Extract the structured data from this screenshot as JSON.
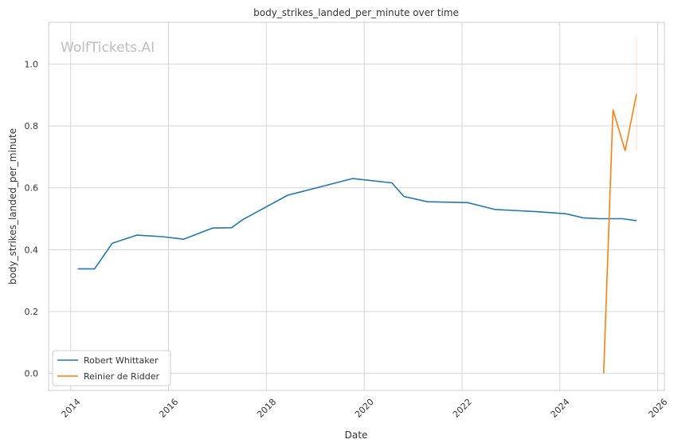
{
  "chart_data": {
    "type": "line",
    "title": "body_strikes_landed_per_minute over time",
    "xlabel": "Date",
    "ylabel": "body_strikes_landed_per_minute",
    "watermark": "WolfTickets.AI",
    "xlim": [
      "2013-07-20",
      "2026-02-20"
    ],
    "ylim": [
      -0.055,
      1.135
    ],
    "x_ticks": [
      "2014",
      "2016",
      "2018",
      "2020",
      "2022",
      "2024",
      "2026"
    ],
    "y_ticks": [
      "0.0",
      "0.2",
      "0.4",
      "0.6",
      "0.8",
      "1.0"
    ],
    "y_tick_values": [
      0.0,
      0.2,
      0.4,
      0.6,
      0.8,
      1.0
    ],
    "grid": true,
    "legend_position": "bottom-left",
    "series": [
      {
        "name": "Robert Whittaker",
        "color": "#1f77b4",
        "points": [
          {
            "x": "2014-02-22",
            "y": 0.338
          },
          {
            "x": "2014-06-28",
            "y": 0.338
          },
          {
            "x": "2014-11-08",
            "y": 0.421
          },
          {
            "x": "2015-05-10",
            "y": 0.447
          },
          {
            "x": "2015-11-14",
            "y": 0.442
          },
          {
            "x": "2016-04-23",
            "y": 0.434
          },
          {
            "x": "2016-11-26",
            "y": 0.47
          },
          {
            "x": "2017-04-16",
            "y": 0.471
          },
          {
            "x": "2017-07-08",
            "y": 0.497
          },
          {
            "x": "2018-06-09",
            "y": 0.576
          },
          {
            "x": "2019-10-06",
            "y": 0.63
          },
          {
            "x": "2020-07-26",
            "y": 0.616
          },
          {
            "x": "2020-10-24",
            "y": 0.572
          },
          {
            "x": "2021-04-17",
            "y": 0.555
          },
          {
            "x": "2022-02-12",
            "y": 0.552
          },
          {
            "x": "2022-09-03",
            "y": 0.53
          },
          {
            "x": "2023-07-08",
            "y": 0.523
          },
          {
            "x": "2024-02-17",
            "y": 0.516
          },
          {
            "x": "2024-06-22",
            "y": 0.503
          },
          {
            "x": "2024-10-26",
            "y": 0.5
          },
          {
            "x": "2025-04-12",
            "y": 0.5
          },
          {
            "x": "2025-07-26",
            "y": 0.494
          }
        ]
      },
      {
        "name": "Reinier de Ridder",
        "color": "#ff7f0e",
        "points": [
          {
            "x": "2024-11-23",
            "y": 0.0
          },
          {
            "x": "2025-02-01",
            "y": 0.852
          },
          {
            "x": "2025-05-03",
            "y": 0.72
          },
          {
            "x": "2025-07-26",
            "y": 0.903
          }
        ],
        "band_at_last_point": [
          0.72,
          1.085
        ]
      }
    ]
  }
}
